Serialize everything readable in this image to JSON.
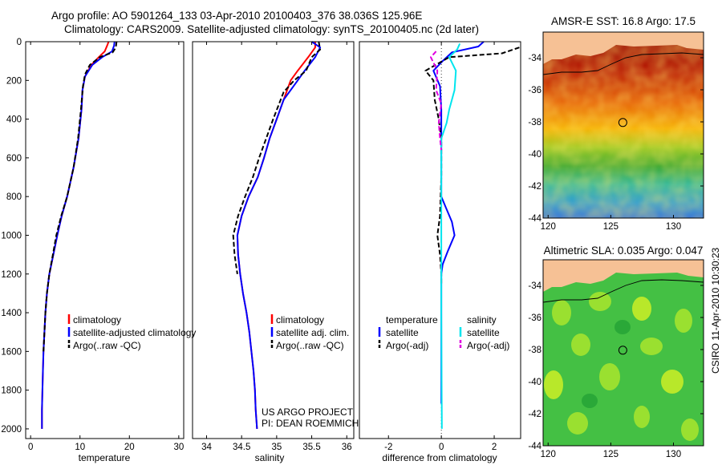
{
  "title_line1": "Argo profile: AO 5901264_133 03-Apr-2010 20100403_376 38.036S 125.96E",
  "title_line2": "Climatology: CARS2009. Satellite-adjusted climatology: synTS_20100405.nc (2d later)",
  "credit": "CSIRO 11-Apr-2010 10:30:23",
  "project_line1": "US ARGO PROJECT",
  "project_line2": "PI: DEAN ROEMMICH",
  "colors": {
    "climatology": "#ff0000",
    "satellite": "#0000ff",
    "argo": "#000000",
    "satellite_salinity": "#00e5ee",
    "argo_salinity": "#e000e0"
  },
  "chart_data": [
    {
      "type": "line",
      "xlabel": "temperature",
      "ylim": [
        2050,
        0
      ],
      "xlim": [
        -1,
        31
      ],
      "xticks": [
        0,
        10,
        20,
        30
      ],
      "yticks": [
        0,
        200,
        400,
        600,
        800,
        1000,
        1200,
        1400,
        1600,
        1800,
        2000
      ],
      "legend": [
        "climatology",
        "satellite-adjusted climatology",
        "Argo(..raw -QC)"
      ],
      "series": [
        {
          "name": "climatology",
          "color": "#ff0000",
          "dash": false,
          "points": [
            [
              15.8,
              0
            ],
            [
              15.5,
              20
            ],
            [
              15,
              50
            ],
            [
              13.8,
              80
            ],
            [
              12.3,
              120
            ],
            [
              11,
              180
            ],
            [
              10.5,
              250
            ],
            [
              10.3,
              350
            ],
            [
              9.7,
              500
            ],
            [
              8.7,
              650
            ],
            [
              7.4,
              800
            ],
            [
              6.3,
              900
            ],
            [
              5.4,
              1000
            ],
            [
              4.6,
              1100
            ],
            [
              3.8,
              1200
            ],
            [
              3.3,
              1300
            ],
            [
              3,
              1400
            ],
            [
              2.8,
              1500
            ],
            [
              2.6,
              1600
            ],
            [
              2.5,
              1700
            ],
            [
              2.4,
              1800
            ],
            [
              2.3,
              1900
            ],
            [
              2.3,
              2000
            ]
          ]
        },
        {
          "name": "satellite-adjusted climatology",
          "color": "#0000ff",
          "dash": false,
          "points": [
            [
              17,
              0
            ],
            [
              16.9,
              20
            ],
            [
              16.5,
              50
            ],
            [
              14.5,
              80
            ],
            [
              12.5,
              120
            ],
            [
              11,
              180
            ],
            [
              10.5,
              250
            ],
            [
              10.3,
              350
            ],
            [
              9.7,
              500
            ],
            [
              8.7,
              650
            ],
            [
              7.4,
              800
            ],
            [
              6.3,
              900
            ],
            [
              5.4,
              1000
            ],
            [
              4.6,
              1100
            ],
            [
              3.8,
              1200
            ],
            [
              3.3,
              1300
            ],
            [
              3,
              1400
            ],
            [
              2.8,
              1500
            ],
            [
              2.6,
              1600
            ],
            [
              2.5,
              1700
            ],
            [
              2.4,
              1800
            ],
            [
              2.3,
              1900
            ],
            [
              2.3,
              2000
            ]
          ]
        },
        {
          "name": "Argo(..raw -QC)",
          "color": "#000000",
          "dash": true,
          "points": [
            [
              17.4,
              0
            ],
            [
              17.3,
              20
            ],
            [
              17,
              40
            ],
            [
              16.6,
              55
            ],
            [
              14,
              80
            ],
            [
              12,
              120
            ],
            [
              11,
              170
            ],
            [
              10.6,
              230
            ],
            [
              10.2,
              350
            ],
            [
              9.6,
              500
            ],
            [
              8.7,
              650
            ],
            [
              7.4,
              800
            ],
            [
              6.2,
              900
            ],
            [
              5.2,
              1000
            ],
            [
              4.5,
              1100
            ],
            [
              3.8,
              1200
            ],
            [
              3.3,
              1300
            ],
            [
              3,
              1400
            ],
            [
              2.8,
              1500
            ],
            [
              2.6,
              1600
            ]
          ]
        }
      ]
    },
    {
      "type": "line",
      "xlabel": "salinity",
      "ylim": [
        2050,
        0
      ],
      "xlim": [
        33.8,
        36.1
      ],
      "xticks": [
        34,
        34.5,
        35,
        35.5,
        36
      ],
      "legend": [
        "climatology",
        "satellite adj. clim.",
        "Argo(..raw -QC)"
      ],
      "series": [
        {
          "name": "climatology",
          "color": "#ff0000",
          "dash": false,
          "points": [
            [
              35.55,
              0
            ],
            [
              35.55,
              30
            ],
            [
              35.45,
              80
            ],
            [
              35.3,
              150
            ],
            [
              35.2,
              200
            ],
            [
              35.1,
              300
            ],
            [
              35.0,
              400
            ],
            [
              34.9,
              500
            ],
            [
              34.82,
              600
            ],
            [
              34.73,
              700
            ],
            [
              34.6,
              800
            ],
            [
              34.5,
              900
            ],
            [
              34.44,
              1000
            ],
            [
              34.45,
              1100
            ],
            [
              34.48,
              1200
            ],
            [
              34.52,
              1300
            ],
            [
              34.57,
              1400
            ],
            [
              34.61,
              1500
            ],
            [
              34.64,
              1600
            ],
            [
              34.67,
              1700
            ],
            [
              34.69,
              1800
            ],
            [
              34.7,
              1900
            ],
            [
              34.72,
              2000
            ]
          ]
        },
        {
          "name": "satellite adj. clim.",
          "color": "#0000ff",
          "dash": false,
          "points": [
            [
              35.5,
              0
            ],
            [
              35.62,
              30
            ],
            [
              35.55,
              80
            ],
            [
              35.4,
              150
            ],
            [
              35.3,
              200
            ],
            [
              35.1,
              300
            ],
            [
              35.0,
              400
            ],
            [
              34.9,
              500
            ],
            [
              34.82,
              600
            ],
            [
              34.73,
              700
            ],
            [
              34.6,
              800
            ],
            [
              34.5,
              900
            ],
            [
              34.44,
              1000
            ],
            [
              34.45,
              1100
            ],
            [
              34.48,
              1200
            ],
            [
              34.52,
              1300
            ],
            [
              34.57,
              1400
            ],
            [
              34.61,
              1500
            ],
            [
              34.64,
              1600
            ],
            [
              34.67,
              1700
            ],
            [
              34.69,
              1800
            ],
            [
              34.7,
              1900
            ],
            [
              34.72,
              2000
            ]
          ]
        },
        {
          "name": "Argo(..raw -QC)",
          "color": "#000000",
          "dash": true,
          "points": [
            [
              35.6,
              0
            ],
            [
              35.62,
              40
            ],
            [
              35.5,
              80
            ],
            [
              35.42,
              150
            ],
            [
              35.25,
              200
            ],
            [
              35.1,
              260
            ],
            [
              34.95,
              400
            ],
            [
              34.85,
              500
            ],
            [
              34.75,
              600
            ],
            [
              34.66,
              700
            ],
            [
              34.55,
              800
            ],
            [
              34.45,
              900
            ],
            [
              34.38,
              1000
            ],
            [
              34.4,
              1100
            ],
            [
              34.44,
              1200
            ]
          ]
        }
      ]
    },
    {
      "type": "line",
      "xlabel": "difference from climatology",
      "ylim": [
        2050,
        0
      ],
      "xlim": [
        -3.1,
        3
      ],
      "xticks": [
        -2,
        0,
        2
      ],
      "legend_temperature_header": "temperature",
      "legend_salinity_header": "salinity",
      "legend": [
        "satellite",
        "Argo(-adj)",
        "satellite",
        "Argo(-adj)"
      ],
      "series": [
        {
          "name": "satellite",
          "color": "#0000ff",
          "dash": false,
          "points": [
            [
              1.6,
              0
            ],
            [
              1.4,
              25
            ],
            [
              0.4,
              55
            ],
            [
              0.05,
              100
            ],
            [
              -0.3,
              150
            ],
            [
              -0.05,
              230
            ],
            [
              0,
              350
            ],
            [
              0,
              800
            ],
            [
              0.15,
              850
            ],
            [
              0.4,
              930
            ],
            [
              0.5,
              1000
            ],
            [
              0.25,
              1080
            ],
            [
              0.05,
              1150
            ],
            [
              0,
              1200
            ],
            [
              0,
              1500
            ],
            [
              0,
              1870
            ]
          ]
        },
        {
          "name": "Argo(-adj)",
          "color": "#000000",
          "dash": true,
          "points": [
            [
              2.95,
              30
            ],
            [
              2.3,
              60
            ],
            [
              0.3,
              80
            ],
            [
              -0.6,
              150
            ],
            [
              -0.3,
              200
            ],
            [
              -0.25,
              300
            ],
            [
              -0.1,
              400
            ],
            [
              0,
              500
            ],
            [
              0,
              700
            ],
            [
              -0.05,
              900
            ],
            [
              -0.15,
              1000
            ],
            [
              -0.05,
              1100
            ],
            [
              0,
              1200
            ],
            [
              0,
              1250
            ]
          ]
        },
        {
          "name": "satellite",
          "color": "#00e5ee",
          "dash": false,
          "points": [
            [
              0.7,
              10
            ],
            [
              0.6,
              40
            ],
            [
              0.3,
              80
            ],
            [
              0.55,
              150
            ],
            [
              0.5,
              250
            ],
            [
              0.3,
              350
            ],
            [
              0.2,
              420
            ],
            [
              0,
              500
            ],
            [
              0,
              1400
            ],
            [
              0.02,
              2000
            ]
          ]
        },
        {
          "name": "Argo(-adj)",
          "color": "#e000e0",
          "dash": true,
          "points": [
            [
              -0.2,
              50
            ],
            [
              -0.4,
              80
            ],
            [
              -0.15,
              150
            ],
            [
              -0.2,
              250
            ],
            [
              0,
              320
            ],
            [
              -0.1,
              420
            ],
            [
              -0.05,
              500
            ],
            [
              0,
              560
            ]
          ]
        }
      ]
    },
    {
      "type": "heatmap",
      "title": "AMSR-E SST: 16.8 Argo: 17.5",
      "xticks": [
        120,
        125,
        130
      ],
      "yticks": [
        -34,
        -36,
        -38,
        -40,
        -42,
        -44
      ],
      "xlim": [
        119.6,
        132.4
      ],
      "ylim": [
        -44,
        -32.4
      ],
      "marker": [
        125.96,
        -38.04
      ]
    },
    {
      "type": "heatmap",
      "title": "Altimetric SLA: 0.035 Argo: 0.047",
      "xticks": [
        120,
        125,
        130
      ],
      "yticks": [
        -34,
        -36,
        -38,
        -40,
        -42,
        -44
      ],
      "xlim": [
        119.6,
        132.4
      ],
      "ylim": [
        -44,
        -32.4
      ],
      "marker": [
        125.96,
        -38.04
      ]
    }
  ]
}
